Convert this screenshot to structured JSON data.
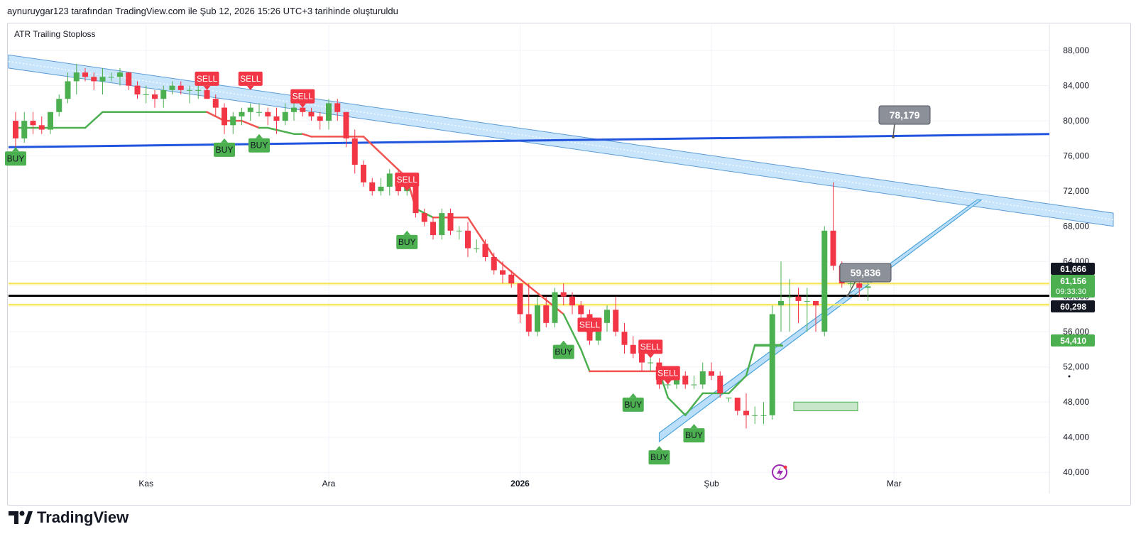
{
  "header": {
    "caption": "aynuruygar123 tarafından TradingView.com ile Şub 12, 2026 15:26 UTC+3 tarihinde oluşturuldu"
  },
  "indicator": {
    "name": "ATR Trailing Stoploss"
  },
  "brand": {
    "name": "TradingView",
    "icon": "tradingview-logo-icon"
  },
  "extras": {
    "icon": "flash-icon"
  },
  "colors": {
    "up": "#4caf50",
    "down": "#f23645",
    "grid": "#f0f3fa",
    "stop_up": "#4caf50",
    "stop_down": "#f05350",
    "channel": "#2962ff",
    "channel_fill": "#bbdefb",
    "hline_blue": "#2255dd",
    "hline_black": "#000000",
    "hline_yellow": "#f5e65a",
    "callout": "#8c9099"
  },
  "chart_data": {
    "type": "candlestick",
    "title": "",
    "indicator": "ATR Trailing Stoploss",
    "yaxis": {
      "ylim": [
        38000,
        91000
      ],
      "ticks": [
        40000,
        44000,
        48000,
        52000,
        56000,
        60000,
        64000,
        68000,
        72000,
        76000,
        80000,
        84000,
        88000
      ],
      "tick_labels": [
        "40,000",
        "44,000",
        "48,000",
        "52,000",
        "56,000",
        "60,000",
        "64,000",
        "68,000",
        "72,000",
        "76,000",
        "80,000",
        "84,000",
        "88,000"
      ],
      "grid": true
    },
    "xaxis": {
      "labels": [
        {
          "text": "Kas",
          "bar": 15,
          "bold": false
        },
        {
          "text": "Ara",
          "bar": 36,
          "bold": false
        },
        {
          "text": "2026",
          "bar": 58,
          "bold": true
        },
        {
          "text": "Şub",
          "bar": 80,
          "bold": false
        },
        {
          "text": "Mar",
          "bar": 101,
          "bold": false
        }
      ],
      "bar_count_visible": 130
    },
    "candles": [
      [
        80000,
        81000,
        77000,
        78000
      ],
      [
        78000,
        81000,
        77500,
        80000
      ],
      [
        80000,
        81000,
        78500,
        79500
      ],
      [
        79500,
        80500,
        78500,
        79000
      ],
      [
        79000,
        81000,
        78500,
        81000
      ],
      [
        81000,
        83000,
        80500,
        82500
      ],
      [
        82500,
        85500,
        82000,
        84500
      ],
      [
        84500,
        86500,
        83000,
        85500
      ],
      [
        85500,
        86000,
        84500,
        85000
      ],
      [
        85000,
        85500,
        83500,
        84500
      ],
      [
        84500,
        86000,
        83000,
        85000
      ],
      [
        85000,
        85500,
        84500,
        85000
      ],
      [
        85000,
        86000,
        84000,
        85500
      ],
      [
        85500,
        85500,
        83500,
        84000
      ],
      [
        84000,
        84500,
        82500,
        83000
      ],
      [
        83000,
        84000,
        82000,
        83000
      ],
      [
        83000,
        83500,
        81500,
        82500
      ],
      [
        82500,
        84000,
        81500,
        83500
      ],
      [
        83500,
        84500,
        83000,
        84000
      ],
      [
        84000,
        84500,
        83000,
        83500
      ],
      [
        83500,
        84000,
        82000,
        83500
      ],
      [
        83500,
        84000,
        82500,
        83500
      ],
      [
        83500,
        84000,
        82500,
        82500
      ],
      [
        82500,
        83000,
        80500,
        81500
      ],
      [
        81500,
        82000,
        78500,
        79500
      ],
      [
        79500,
        81000,
        78500,
        80500
      ],
      [
        80500,
        81500,
        79500,
        81000
      ],
      [
        81000,
        82000,
        80000,
        81500
      ],
      [
        81000,
        82000,
        80500,
        81000
      ],
      [
        81000,
        81500,
        79500,
        80500
      ],
      [
        80500,
        81500,
        78500,
        80000
      ],
      [
        80000,
        82000,
        79500,
        81000
      ],
      [
        81000,
        82500,
        80000,
        81500
      ],
      [
        81500,
        82500,
        80500,
        81000
      ],
      [
        81000,
        81500,
        80000,
        80500
      ],
      [
        80500,
        81000,
        79000,
        80000
      ],
      [
        80000,
        82500,
        79000,
        82000
      ],
      [
        82000,
        82500,
        80000,
        81000
      ],
      [
        81000,
        81000,
        77000,
        78000
      ],
      [
        78000,
        79000,
        74000,
        75000
      ],
      [
        75000,
        75500,
        72500,
        73000
      ],
      [
        73000,
        73500,
        71500,
        72000
      ],
      [
        72000,
        73500,
        71500,
        72500
      ],
      [
        72500,
        74500,
        71500,
        74000
      ],
      [
        74000,
        74500,
        71500,
        72000
      ],
      [
        72000,
        73500,
        71500,
        72500
      ],
      [
        72500,
        72500,
        69000,
        69500
      ],
      [
        69500,
        70000,
        68000,
        68500
      ],
      [
        68500,
        69000,
        66500,
        67000
      ],
      [
        67000,
        70000,
        66500,
        69500
      ],
      [
        69500,
        70000,
        67000,
        67500
      ],
      [
        67500,
        68000,
        66500,
        67500
      ],
      [
        67500,
        68500,
        64500,
        65500
      ],
      [
        65500,
        66500,
        65000,
        65500
      ],
      [
        66000,
        66500,
        64000,
        64500
      ],
      [
        64500,
        65000,
        62500,
        63000
      ],
      [
        63000,
        64000,
        61500,
        62500
      ],
      [
        62500,
        63000,
        61000,
        61500
      ],
      [
        61500,
        61500,
        57000,
        58000
      ],
      [
        58000,
        61500,
        55500,
        56000
      ],
      [
        56000,
        60000,
        55500,
        59000
      ],
      [
        59000,
        60000,
        56500,
        57000
      ],
      [
        57000,
        61000,
        56500,
        60500
      ],
      [
        60500,
        61500,
        59000,
        60000
      ],
      [
        60000,
        60500,
        58000,
        59000
      ],
      [
        59000,
        59500,
        57500,
        58000
      ],
      [
        58000,
        58500,
        54500,
        55000
      ],
      [
        55000,
        57000,
        54500,
        57000
      ],
      [
        57000,
        59000,
        56000,
        58500
      ],
      [
        58500,
        60000,
        55500,
        56000
      ],
      [
        56000,
        57000,
        53500,
        54500
      ],
      [
        54500,
        55500,
        53000,
        53500
      ],
      [
        53500,
        54500,
        51500,
        52500
      ],
      [
        52500,
        53000,
        51500,
        52500
      ],
      [
        52500,
        53000,
        49500,
        50000
      ],
      [
        50000,
        50500,
        49500,
        50000
      ],
      [
        50000,
        51500,
        49500,
        51000
      ],
      [
        51000,
        51500,
        49500,
        50000
      ],
      [
        50000,
        51000,
        49500,
        50000
      ],
      [
        50000,
        52500,
        49500,
        51500
      ],
      [
        51500,
        52500,
        50500,
        51000
      ],
      [
        51000,
        51500,
        48500,
        49000
      ],
      [
        48500,
        48000,
        48500,
        48500
      ],
      [
        48500,
        48500,
        46500,
        47000
      ],
      [
        47000,
        49000,
        45000,
        46500
      ],
      [
        46500,
        47500,
        45500,
        46500
      ],
      [
        46500,
        48000,
        45500,
        46500
      ],
      [
        46500,
        59000,
        46000,
        58000
      ],
      [
        59000,
        64000,
        56000,
        59500
      ],
      [
        60000,
        62000,
        56000,
        60000
      ],
      [
        60000,
        61000,
        57000,
        59500
      ],
      [
        59500,
        61000,
        56000,
        59500
      ],
      [
        59500,
        59500,
        56000,
        59000
      ],
      [
        56000,
        68000,
        55500,
        67500
      ],
      [
        67500,
        73000,
        63000,
        63500
      ],
      [
        63500,
        64000,
        61000,
        61500
      ],
      [
        61500,
        63000,
        61000,
        61500
      ],
      [
        61500,
        62000,
        60000,
        61000
      ],
      [
        61000,
        62000,
        59500,
        61156
      ]
    ],
    "candles_offset": 0,
    "atr_stop": [
      {
        "bar": 0,
        "value": 79200,
        "color": "up"
      },
      {
        "bar": 8,
        "value": 79200,
        "color": "up"
      },
      {
        "bar": 10,
        "value": 81000,
        "color": "up"
      },
      {
        "bar": 17,
        "value": 81000,
        "color": "up"
      },
      {
        "bar": 22,
        "value": 81000,
        "color": "up"
      },
      {
        "bar": 24,
        "value": 80000,
        "color": "down"
      },
      {
        "bar": 26,
        "value": 80000,
        "color": "down"
      },
      {
        "bar": 28,
        "value": 79200,
        "color": "down"
      },
      {
        "bar": 29,
        "value": 79200,
        "color": "up"
      },
      {
        "bar": 32,
        "value": 78500,
        "color": "up"
      },
      {
        "bar": 33,
        "value": 78500,
        "color": "up"
      },
      {
        "bar": 34,
        "value": 78200,
        "color": "down"
      },
      {
        "bar": 40,
        "value": 78200,
        "color": "down"
      },
      {
        "bar": 45,
        "value": 73500,
        "color": "down"
      },
      {
        "bar": 46,
        "value": 70000,
        "color": "down"
      },
      {
        "bar": 48,
        "value": 69000,
        "color": "up"
      },
      {
        "bar": 49,
        "value": 69000,
        "color": "down"
      },
      {
        "bar": 52,
        "value": 69000,
        "color": "down"
      },
      {
        "bar": 55,
        "value": 64500,
        "color": "down"
      },
      {
        "bar": 58,
        "value": 62000,
        "color": "down"
      },
      {
        "bar": 63,
        "value": 58000,
        "color": "down"
      },
      {
        "bar": 65,
        "value": 54000,
        "color": "up"
      },
      {
        "bar": 66,
        "value": 51500,
        "color": "up"
      },
      {
        "bar": 68,
        "value": 51500,
        "color": "down"
      },
      {
        "bar": 74,
        "value": 51500,
        "color": "down"
      },
      {
        "bar": 75,
        "value": 48500,
        "color": "up"
      },
      {
        "bar": 77,
        "value": 46500,
        "color": "up"
      },
      {
        "bar": 79,
        "value": 49000,
        "color": "up"
      },
      {
        "bar": 82,
        "value": 49000,
        "color": "up"
      },
      {
        "bar": 84,
        "value": 51000,
        "color": "up"
      },
      {
        "bar": 85,
        "value": 54500,
        "color": "up"
      },
      {
        "bar": 88,
        "value": 54500,
        "color": "up"
      }
    ],
    "signals": [
      {
        "type": "BUY",
        "bar": 0,
        "price": 77000
      },
      {
        "type": "BUY",
        "bar": 24,
        "price": 78000
      },
      {
        "type": "BUY",
        "bar": 28,
        "price": 78500
      },
      {
        "type": "SELL",
        "bar": 22,
        "price": 83500
      },
      {
        "type": "SELL",
        "bar": 27,
        "price": 83500
      },
      {
        "type": "SELL",
        "bar": 33,
        "price": 81500
      },
      {
        "type": "SELL",
        "bar": 45,
        "price": 72000
      },
      {
        "type": "BUY",
        "bar": 45,
        "price": 67500
      },
      {
        "type": "BUY",
        "bar": 63,
        "price": 55000
      },
      {
        "type": "SELL",
        "bar": 66,
        "price": 55500
      },
      {
        "type": "BUY",
        "bar": 71,
        "price": 49000
      },
      {
        "type": "SELL",
        "bar": 73,
        "price": 53000
      },
      {
        "type": "SELL",
        "bar": 75,
        "price": 50000
      },
      {
        "type": "BUY",
        "bar": 74,
        "price": 43000
      },
      {
        "type": "BUY",
        "bar": 78,
        "price": 45500
      }
    ],
    "horizontal_lines": [
      {
        "name": "resistance-blue",
        "y1": 77000,
        "y2": 78500,
        "color": "hline_blue"
      },
      {
        "name": "support-black",
        "y1": 60100,
        "y2": 60100,
        "color": "hline_black"
      },
      {
        "name": "upper-yellow",
        "y1": 61500,
        "y2": 61500,
        "color": "hline_yellow"
      },
      {
        "name": "lower-yellow",
        "y1": 59100,
        "y2": 59100,
        "color": "hline_yellow"
      }
    ],
    "callouts": [
      {
        "name": "callout-78179",
        "text": "78,179",
        "price": 78179
      },
      {
        "name": "callout-59836",
        "text": "59,836",
        "price": 59836
      }
    ],
    "price_labels": [
      {
        "text": "61,666",
        "price": 61666,
        "bg": "#131722",
        "fg": "#ffffff"
      },
      {
        "text": "61,156",
        "price": 61156,
        "bg": "#4caf50",
        "fg": "#ffffff",
        "sub": "09:33:30"
      },
      {
        "text": "60,298",
        "price": 60298,
        "bg": "#131722",
        "fg": "#ffffff"
      },
      {
        "text": "54,410",
        "price": 54410,
        "bg": "#4caf50",
        "fg": "#ffffff"
      }
    ],
    "last_price": 61156,
    "countdown": "09:33:30",
    "stop_value": 54410,
    "target_box": {
      "price_low": 47000,
      "price_high": 48000
    }
  }
}
